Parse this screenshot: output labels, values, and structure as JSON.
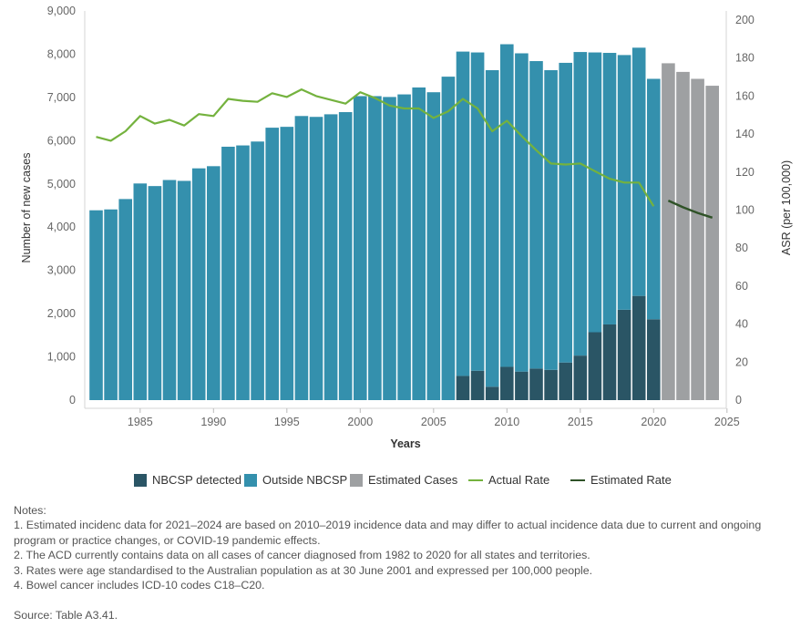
{
  "chart_data": {
    "type": "bar+line",
    "x_label": "Years",
    "y_left_label": "Number of new cases",
    "y_right_label": "ASR (per 100,000)",
    "y_left_ticks": [
      "0",
      "1,000",
      "2,000",
      "3,000",
      "4,000",
      "5,000",
      "6,000",
      "7,000",
      "8,000",
      "9,000"
    ],
    "y_right_ticks": [
      "0",
      "20",
      "40",
      "60",
      "80",
      "100",
      "120",
      "140",
      "160",
      "180",
      "200"
    ],
    "x_ticks": [
      "1985",
      "1990",
      "1995",
      "2000",
      "2005",
      "2010",
      "2015",
      "2020",
      "2025"
    ],
    "y_left_range": [
      0,
      9000
    ],
    "y_right_range": [
      0,
      200
    ],
    "years": [
      1982,
      1983,
      1984,
      1985,
      1986,
      1987,
      1988,
      1989,
      1990,
      1991,
      1992,
      1993,
      1994,
      1995,
      1996,
      1997,
      1998,
      1999,
      2000,
      2001,
      2002,
      2003,
      2004,
      2005,
      2006,
      2007,
      2008,
      2009,
      2010,
      2011,
      2012,
      2013,
      2014,
      2015,
      2016,
      2017,
      2018,
      2019,
      2020
    ],
    "outside_nbcsp": [
      4390,
      4410,
      4650,
      5010,
      4950,
      5090,
      5070,
      5360,
      5410,
      5860,
      5890,
      5980,
      6300,
      6320,
      6570,
      6550,
      6610,
      6660,
      7030,
      7030,
      7010,
      7070,
      7230,
      7120,
      7480,
      7500,
      7360,
      7320,
      7460,
      7360,
      7110,
      6930,
      6930,
      7020,
      6470,
      6280,
      5890,
      5740,
      5560
    ],
    "nbcsp_detected": [
      0,
      0,
      0,
      0,
      0,
      0,
      0,
      0,
      0,
      0,
      0,
      0,
      0,
      0,
      0,
      0,
      0,
      0,
      0,
      0,
      0,
      0,
      0,
      0,
      0,
      560,
      680,
      310,
      770,
      660,
      730,
      700,
      870,
      1030,
      1570,
      1750,
      2090,
      2410,
      1870
    ],
    "estimated_years": [
      2021,
      2022,
      2023,
      2024
    ],
    "estimated_cases": [
      7790,
      7590,
      7430,
      7270
    ],
    "actual_rate": [
      138.5,
      136.5,
      141.5,
      149.5,
      145.5,
      147.5,
      144.5,
      150.5,
      149.5,
      158.5,
      157.5,
      157.0,
      161.5,
      159.5,
      163.5,
      160.0,
      158.0,
      156.0,
      162.0,
      159.0,
      155.0,
      153.5,
      153.5,
      148.5,
      152.0,
      158.5,
      153.5,
      141.5,
      147.0,
      139.0,
      131.5,
      124.5,
      124.0,
      124.5,
      120.5,
      116.5,
      114.5,
      114.5,
      102.0
    ],
    "estimated_rate": [
      105.0,
      101.5,
      98.5,
      96.0
    ],
    "colors": {
      "nbcsp": "#2a5565",
      "outside": "#3490ad",
      "estimated": "#9ea0a2",
      "actual_rate": "#74b23e",
      "estimated_rate": "#2f5227"
    },
    "legend": [
      "NBCSP detected",
      "Outside NBCSP",
      "Estimated Cases",
      "Actual Rate",
      "Estimated Rate"
    ]
  },
  "notes": {
    "heading": "Notes:",
    "lines": [
      "1. Estimated incidenc data for 2021–2024 are based on 2010–2019 incidence data and may differ to actual incidence data due to current and ongoing",
      "program or practice changes, or COVID-19 pandemic effects.",
      "2. The ACD currently contains data on all cases of cancer diagnosed from 1982 to 2020 for all states and territories.",
      "3. Rates were age standardised to the Australian population as at 30 June 2001 and expressed per 100,000 people.",
      "4. Bowel cancer includes ICD-10 codes C18–C20."
    ]
  },
  "source": "Source: Table A3.41."
}
